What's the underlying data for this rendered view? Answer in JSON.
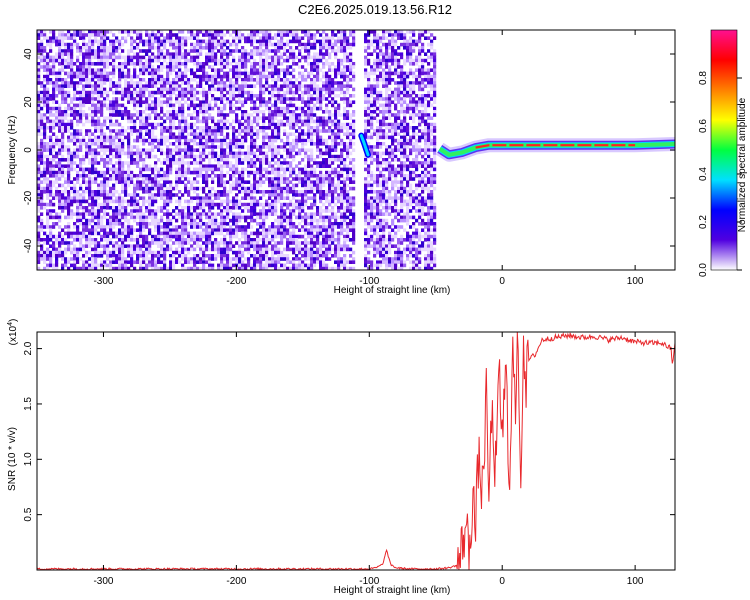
{
  "title": "C2E6.2025.019.13.56.R12",
  "chart_data": [
    {
      "type": "heatmap",
      "xlabel": "Height of straight line (km)",
      "ylabel": "Frequency (Hz)",
      "xlim": [
        -350,
        130
      ],
      "ylim": [
        -50,
        50
      ],
      "xticks": [
        -300,
        -200,
        -100,
        0,
        100
      ],
      "xtick_labels": [
        "-300",
        "-200",
        "-100",
        "0",
        "100"
      ],
      "yticks": [
        -40,
        -20,
        0,
        20,
        40
      ],
      "ytick_labels": [
        "-40",
        "-20",
        "0",
        "20",
        "40"
      ],
      "colorbar": {
        "label": "Normalized spectral amplitude",
        "range": [
          0,
          1
        ],
        "ticks": [
          0.0,
          0.2,
          0.4,
          0.6,
          0.8
        ],
        "tick_labels": [
          "0.0",
          "0.2",
          "0.4",
          "0.6",
          "0.8"
        ],
        "colormap": [
          "#ffffff",
          "#5000e0",
          "#0000ff",
          "#00e0ff",
          "#00ff40",
          "#ffff00",
          "#ff8000",
          "#ff0000",
          "#ff1090"
        ]
      },
      "noise_region": {
        "x_range": [
          -350,
          -52
        ],
        "gap_at": -108
      },
      "signal_line": [
        {
          "x": -47,
          "y": 0.5
        },
        {
          "x": -40,
          "y": -2
        },
        {
          "x": -30,
          "y": -1
        },
        {
          "x": -20,
          "y": 1
        },
        {
          "x": -10,
          "y": 2
        },
        {
          "x": 0,
          "y": 2
        },
        {
          "x": 50,
          "y": 2
        },
        {
          "x": 100,
          "y": 2
        },
        {
          "x": 130,
          "y": 2.5
        }
      ],
      "feature_near_gap": [
        {
          "x": -106,
          "y": 6
        },
        {
          "x": -104,
          "y": 3
        },
        {
          "x": -101,
          "y": -2
        }
      ]
    },
    {
      "type": "line",
      "xlabel": "Height of straight line (km)",
      "ylabel": "SNR (10 * v/v)",
      "y_multiplier_label": "(x10",
      "y_multiplier_exp": "4",
      "y_multiplier_close": ")",
      "xlim": [
        -350,
        130
      ],
      "ylim": [
        0,
        2.15
      ],
      "xticks": [
        -300,
        -200,
        -100,
        0,
        100
      ],
      "xtick_labels": [
        "-300",
        "-200",
        "-100",
        "0",
        "100"
      ],
      "yticks": [
        0.5,
        1.0,
        1.5,
        2.0
      ],
      "ytick_labels": [
        "0.5",
        "1.0",
        "1.5",
        "2.0"
      ],
      "line_color": "#e8282c",
      "series": [
        {
          "x": [
            -350,
            -300,
            -250,
            -200,
            -150,
            -100,
            -95,
            -90,
            -87,
            -84,
            -80,
            -70,
            -60,
            -50,
            -40,
            -32,
            -28,
            -25,
            -22,
            -20,
            -18,
            -15,
            -12,
            -10,
            -8,
            -5,
            -2,
            0,
            3,
            5,
            8,
            10,
            12,
            14,
            16,
            18,
            20,
            25,
            30,
            40,
            50,
            60,
            70,
            80,
            90,
            100,
            110,
            120,
            127,
            128,
            130
          ],
          "y": [
            0.01,
            0.01,
            0.01,
            0.01,
            0.01,
            0.01,
            0.02,
            0.05,
            0.18,
            0.05,
            0.02,
            0.01,
            0.01,
            0.01,
            0.02,
            0.05,
            0.4,
            0.2,
            0.7,
            0.35,
            1.0,
            0.7,
            1.55,
            0.65,
            1.4,
            0.9,
            1.75,
            1.2,
            1.8,
            0.75,
            1.95,
            1.4,
            2.15,
            0.8,
            2.1,
            1.7,
            1.9,
            1.95,
            2.08,
            2.1,
            2.12,
            2.1,
            2.11,
            2.08,
            2.1,
            2.06,
            2.05,
            2.05,
            2.0,
            1.85,
            2.05
          ]
        }
      ]
    }
  ]
}
